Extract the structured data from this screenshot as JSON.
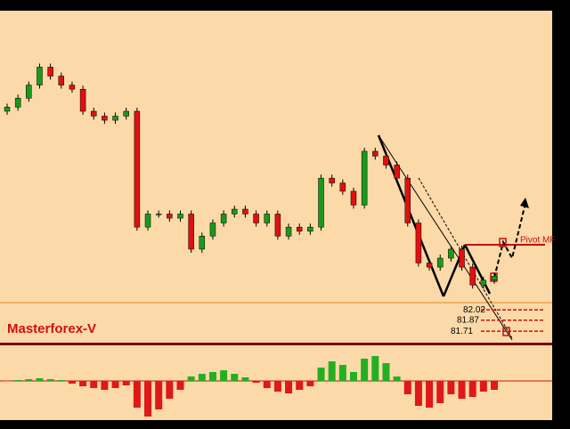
{
  "chart_data": [
    {
      "type": "candlestick",
      "label": "Masterforex-V",
      "open": [
        84.9,
        84.96,
        85.09,
        85.28,
        85.54,
        85.41,
        85.28,
        85.22,
        84.9,
        84.83,
        84.77,
        84.83,
        84.9,
        83.22,
        83.41,
        83.41,
        83.35,
        83.41,
        82.9,
        83.09,
        83.28,
        83.41,
        83.48,
        83.41,
        83.28,
        83.41,
        83.09,
        83.22,
        83.16,
        83.22,
        83.93,
        83.86,
        83.74,
        83.54,
        84.32,
        84.25,
        84.12,
        83.93,
        83.28,
        82.7,
        82.64,
        82.77,
        82.9,
        82.64,
        82.38,
        82.45
      ],
      "close": [
        84.96,
        85.09,
        85.28,
        85.54,
        85.41,
        85.28,
        85.22,
        84.9,
        84.83,
        84.77,
        84.83,
        84.9,
        83.22,
        83.41,
        83.41,
        83.35,
        83.41,
        82.9,
        83.09,
        83.28,
        83.41,
        83.48,
        83.41,
        83.28,
        83.41,
        83.09,
        83.22,
        83.16,
        83.22,
        83.93,
        83.86,
        83.74,
        83.54,
        84.32,
        84.25,
        84.12,
        83.93,
        83.28,
        82.7,
        82.64,
        82.77,
        82.9,
        82.64,
        82.38,
        82.45,
        82.51
      ],
      "up_color": "#1a9a1a",
      "down_color": "#e01010",
      "ylim": [
        81.57,
        86.32
      ],
      "levels": [
        82.02,
        81.87,
        81.71
      ],
      "level_color": "#d01010",
      "annotation": "Pivot MF"
    },
    {
      "type": "bar",
      "values": [
        0,
        1,
        2,
        3,
        2,
        1,
        -3,
        -6,
        -8,
        -10,
        -8,
        -5,
        -30,
        -40,
        -32,
        -20,
        -10,
        5,
        8,
        10,
        12,
        8,
        4,
        -2,
        -8,
        -12,
        -14,
        -10,
        -6,
        15,
        22,
        18,
        10,
        25,
        28,
        20,
        5,
        -15,
        -28,
        -30,
        -25,
        -15,
        -20,
        -18,
        -12,
        -10
      ],
      "positive_color": "#22b022",
      "negative_color": "#e01818",
      "ylim": [
        -42,
        33
      ]
    }
  ]
}
